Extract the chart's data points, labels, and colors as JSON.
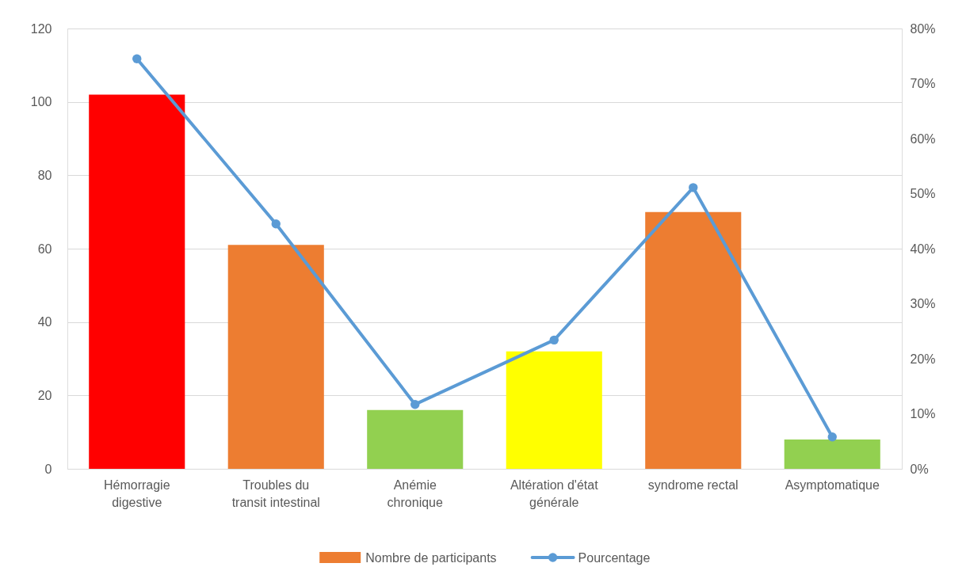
{
  "chart_data": {
    "type": "bar",
    "categories": [
      "Hémorragie digestive",
      "Troubles du transit intestinal",
      "Anémie chronique",
      "Altération d'état générale",
      "syndrome rectal",
      "Asymptomatique"
    ],
    "series": [
      {
        "name": "Nombre de participants",
        "color": "#ed7d31",
        "colors": [
          "#ff0000",
          "#ed7d31",
          "#92d050",
          "#ffff00",
          "#ed7d31",
          "#92d050"
        ],
        "values": [
          102,
          61,
          16,
          32,
          70,
          8
        ]
      },
      {
        "name": "Pourcentage",
        "type": "line",
        "axis": "y2",
        "color": "#5b9bd5",
        "marker": "circle",
        "values": [
          74.5,
          44.5,
          11.7,
          23.4,
          51.1,
          5.8
        ]
      }
    ],
    "ylim": [
      0,
      120
    ],
    "yticks": [
      0,
      20,
      40,
      60,
      80,
      100,
      120
    ],
    "y2lim": [
      0,
      80
    ],
    "y2ticks": [
      {
        "value": 0,
        "label": "0%"
      },
      {
        "value": 10,
        "label": "10%"
      },
      {
        "value": 20,
        "label": "20%"
      },
      {
        "value": 30,
        "label": "30%"
      },
      {
        "value": 40,
        "label": "40%"
      },
      {
        "value": 50,
        "label": "50%"
      },
      {
        "value": 60,
        "label": "60%"
      },
      {
        "value": 70,
        "label": "70%"
      },
      {
        "value": 80,
        "label": "80%"
      }
    ],
    "grid": "y",
    "legend": "bottom"
  }
}
